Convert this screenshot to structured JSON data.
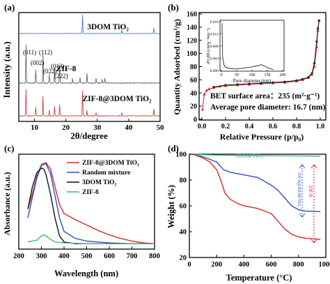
{
  "chart_data": [
    {
      "panel": "(a)",
      "type": "line",
      "xlabel": "2θ/degree",
      "ylabel": "Intensity (a.u.)",
      "xlim": [
        5,
        50
      ],
      "xticks": [
        10,
        20,
        30,
        40,
        50
      ],
      "ticks": [
        "10",
        "20",
        "30",
        "40",
        "50"
      ],
      "grid": false,
      "series": [
        {
          "name": "3DOM TiO2",
          "label": "3DOM TiO₂",
          "color": "#2e6fdc",
          "peaks": [
            [
              25.3,
              1.0
            ],
            [
              37.8,
              0.18
            ],
            [
              48.0,
              0.3
            ]
          ]
        },
        {
          "name": "ZIF-8",
          "label": "ZIF-8",
          "color": "#555555",
          "peaks": [
            [
              7.3,
              1.0
            ],
            [
              10.4,
              0.35
            ],
            [
              12.7,
              0.75
            ],
            [
              14.7,
              0.22
            ],
            [
              16.4,
              0.4
            ],
            [
              18.0,
              0.45
            ],
            [
              22.1,
              0.12
            ],
            [
              24.5,
              0.15
            ],
            [
              26.7,
              0.25
            ],
            [
              29.6,
              0.12
            ],
            [
              31.5,
              0.1
            ],
            [
              32.4,
              0.12
            ]
          ]
        },
        {
          "name": "ZIF-8@3DOM TiO2",
          "label": "ZIF-8@3DOM TiO₂",
          "color": "#d12b2b",
          "peaks": [
            [
              7.3,
              0.95
            ],
            [
              10.4,
              0.3
            ],
            [
              12.7,
              0.7
            ],
            [
              14.7,
              0.2
            ],
            [
              16.4,
              0.35
            ],
            [
              18.0,
              0.4
            ],
            [
              25.3,
              0.9
            ],
            [
              26.7,
              0.2
            ],
            [
              29.6,
              0.1
            ],
            [
              37.8,
              0.12
            ],
            [
              48.0,
              0.25
            ]
          ]
        }
      ],
      "annotations": [
        "(011)",
        "(002)",
        "(112)",
        "(022)",
        "(013)",
        "(222)"
      ]
    },
    {
      "panel": "(b)",
      "type": "line",
      "xlabel": "Relative Pressure (p/p₀)",
      "ylabel": "Quantity Adsorbed (cm³/g)",
      "xlim": [
        0.0,
        1.0
      ],
      "ylim": [
        0,
        160
      ],
      "ticks_x": [
        "0.0",
        "0.2",
        "0.4",
        "0.6",
        "0.8",
        "1.0"
      ],
      "ticks_y": [
        "0",
        "20",
        "40",
        "60",
        "80",
        "100",
        "120",
        "140",
        "160"
      ],
      "grid": false,
      "series": [
        {
          "name": "Adsorption",
          "color": "#d12b2b",
          "x": [
            0.005,
            0.02,
            0.04,
            0.06,
            0.1,
            0.15,
            0.2,
            0.3,
            0.4,
            0.5,
            0.6,
            0.7,
            0.8,
            0.85,
            0.9,
            0.93,
            0.95,
            0.97,
            0.98,
            0.99
          ],
          "y": [
            15,
            38,
            44,
            46,
            48,
            50,
            51,
            52,
            53,
            54,
            55,
            56,
            58,
            60,
            63,
            68,
            80,
            110,
            135,
            150
          ]
        },
        {
          "name": "Desorption",
          "color": "#222222",
          "x": [
            0.99,
            0.98,
            0.97,
            0.95,
            0.93,
            0.9,
            0.85,
            0.8,
            0.7,
            0.6,
            0.5,
            0.4,
            0.3,
            0.2,
            0.1
          ],
          "y": [
            150,
            138,
            118,
            85,
            70,
            64,
            61,
            59,
            57,
            56,
            55,
            54,
            53,
            52,
            49
          ]
        }
      ],
      "annotations": [
        "BET surface area：235 (m²·g⁻¹)",
        "Average pore diameter: 16.7 (nm)"
      ],
      "inset": {
        "xlabel": "Pore diameter (nm)",
        "ylabel": "dV/dD (cm³g⁻¹nm⁻¹)",
        "xlim": [
          0,
          200
        ],
        "ylim": [
          0,
          0.016
        ],
        "ticks_x": [
          "0",
          "50",
          "100",
          "150",
          "200"
        ],
        "ticks_y": [
          "0.000",
          "0.004",
          "0.008",
          "0.012",
          "0.016"
        ],
        "series": [
          {
            "name": "Pore size distribution",
            "color": "#222222",
            "x": [
              2,
              4,
              8,
              12,
              20,
              40,
              60,
              80,
              100,
              120,
              130,
              140,
              150,
              160,
              170
            ],
            "y": [
              0.0155,
              0.0045,
              0.002,
              0.0012,
              0.0008,
              0.0005,
              0.0006,
              0.0009,
              0.0012,
              0.0016,
              0.0019,
              0.0015,
              0.001,
              0.0006,
              0.0003
            ]
          }
        ]
      }
    },
    {
      "panel": "(c)",
      "type": "line",
      "xlabel": "Wavelength (nm)",
      "ylabel": "Absorbance (a.u.)",
      "xlim": [
        200,
        800
      ],
      "ticks": [
        "200",
        "300",
        "400",
        "500",
        "600",
        "700",
        "800"
      ],
      "legend": "top-right",
      "grid": false,
      "series": [
        {
          "name": "ZIF-8@3DOM TiO2",
          "label": "ZIF-8@3DOM TiO₂",
          "color": "#d12b2b",
          "x": [
            240,
            260,
            280,
            300,
            320,
            340,
            360,
            380,
            400,
            450,
            500,
            550,
            600,
            650,
            700,
            750,
            800
          ],
          "y": [
            0.45,
            0.62,
            0.82,
            0.95,
            0.97,
            0.9,
            0.7,
            0.5,
            0.4,
            0.33,
            0.27,
            0.21,
            0.16,
            0.12,
            0.09,
            0.07,
            0.06
          ]
        },
        {
          "name": "Random mixture",
          "color": "#2e4fc0",
          "x": [
            240,
            260,
            280,
            300,
            320,
            340,
            360,
            380,
            400,
            450,
            500,
            550,
            600,
            700,
            800
          ],
          "y": [
            0.35,
            0.58,
            0.8,
            0.94,
            0.96,
            0.85,
            0.6,
            0.35,
            0.2,
            0.12,
            0.09,
            0.08,
            0.07,
            0.06,
            0.06
          ]
        },
        {
          "name": "3DOM TiO2",
          "label": "3DOM TiO₂",
          "color": "#111111",
          "x": [
            240,
            260,
            280,
            300,
            310,
            320,
            340,
            360,
            380,
            400,
            450,
            500,
            600,
            700,
            800
          ],
          "y": [
            0.45,
            0.7,
            0.86,
            0.91,
            0.9,
            0.84,
            0.62,
            0.35,
            0.15,
            0.08,
            0.06,
            0.06,
            0.06,
            0.06,
            0.06
          ]
        },
        {
          "name": "ZIF-8",
          "color": "#3cb878",
          "x": [
            240,
            260,
            280,
            300,
            310,
            320,
            340,
            360,
            400,
            500,
            600,
            700,
            800
          ],
          "y": [
            0.08,
            0.09,
            0.1,
            0.15,
            0.16,
            0.15,
            0.11,
            0.08,
            0.07,
            0.06,
            0.06,
            0.06,
            0.06
          ]
        }
      ]
    },
    {
      "panel": "(d)",
      "type": "line",
      "xlabel": "Temperature (°C)",
      "ylabel": "Weight (%)",
      "xlim": [
        0,
        1000
      ],
      "ylim": [
        20,
        100
      ],
      "ticks_x": [
        "0",
        "200",
        "400",
        "600",
        "800",
        "1000"
      ],
      "ticks_y": [
        "20",
        "40",
        "60",
        "80",
        "100"
      ],
      "grid": false,
      "series": [
        {
          "name": "3DOM TiO2",
          "label": "3DOM TiO₂",
          "color": "#3cb878",
          "x": [
            25,
            100,
            200,
            400,
            600,
            800,
            960
          ],
          "y": [
            100,
            99.6,
            99.3,
            99.0,
            98.8,
            98.6,
            98.5
          ]
        },
        {
          "name": "ZIF-8@3DOM TiO2",
          "color": "#2e4fc0",
          "x": [
            25,
            100,
            200,
            250,
            300,
            400,
            450,
            500,
            600,
            650,
            700,
            750,
            800,
            850,
            900,
            960
          ],
          "y": [
            100,
            98,
            94,
            88,
            86,
            84,
            83,
            82,
            76,
            72,
            66,
            60,
            57,
            56,
            55.8,
            55.5
          ]
        },
        {
          "name": "ZIF-8",
          "color": "#d12b2b",
          "x": [
            25,
            100,
            150,
            200,
            230,
            260,
            300,
            350,
            400,
            500,
            600,
            650,
            700,
            750,
            800,
            850,
            900,
            960
          ],
          "y": [
            100,
            97,
            94,
            88,
            80,
            70,
            65,
            62,
            60,
            58,
            54,
            48,
            42,
            38,
            36,
            35,
            34.5,
            34
          ]
        }
      ],
      "annotations": [
        "3DOM TiO₂",
        "ZIF-8@3DOM TiO₂",
        "ZIF-8"
      ]
    }
  ]
}
